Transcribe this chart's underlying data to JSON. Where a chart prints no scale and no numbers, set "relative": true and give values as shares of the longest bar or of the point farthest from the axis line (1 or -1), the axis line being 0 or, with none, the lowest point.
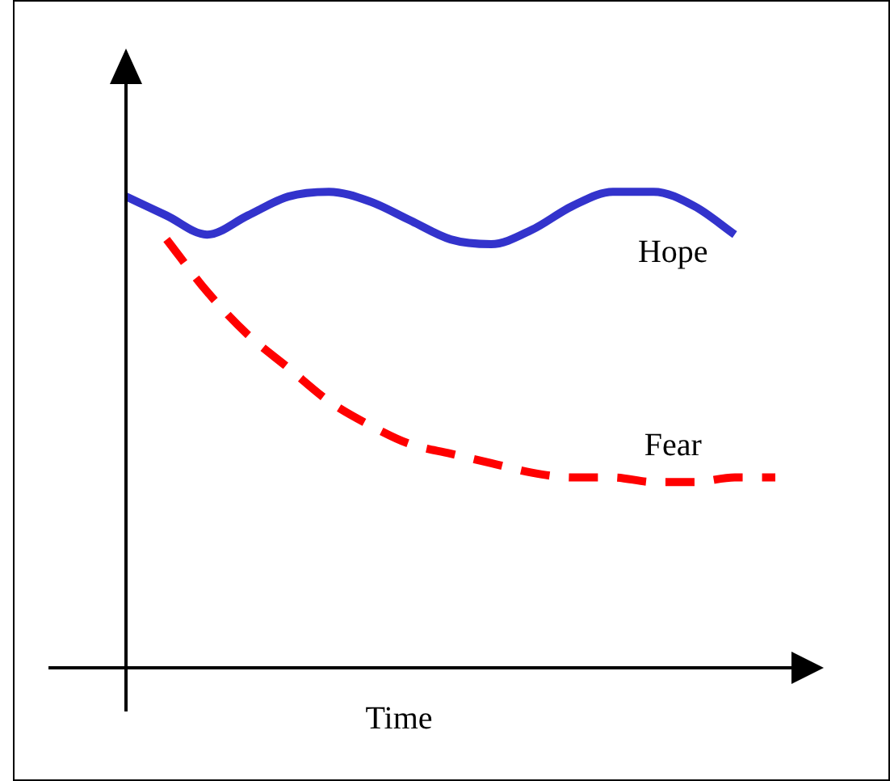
{
  "chart_data": {
    "type": "line",
    "relative": true,
    "xlabel": "Time",
    "categories": [
      null,
      null,
      null,
      null,
      null,
      null,
      null,
      null,
      null,
      null,
      null,
      null,
      null,
      null,
      null,
      null,
      null
    ],
    "marker": "none",
    "legend": false,
    "grid": false,
    "series": [
      {
        "name": "Hope",
        "color": "#3333cc",
        "line_style": "solid",
        "values": [
          0.99,
          0.95,
          0.91,
          0.95,
          0.99,
          1,
          0.98,
          0.94,
          0.9,
          0.89,
          0.92,
          0.97,
          1,
          1,
          0.97,
          0.91,
          null
        ]
      },
      {
        "name": "Fear",
        "color": "#ff0000",
        "line_style": "dashed",
        "values": [
          null,
          0.9,
          0.79,
          0.7,
          0.63,
          0.56,
          0.51,
          0.47,
          0.45,
          0.43,
          0.41,
          0.4,
          0.4,
          0.39,
          0.39,
          0.4,
          0.4
        ]
      }
    ]
  }
}
